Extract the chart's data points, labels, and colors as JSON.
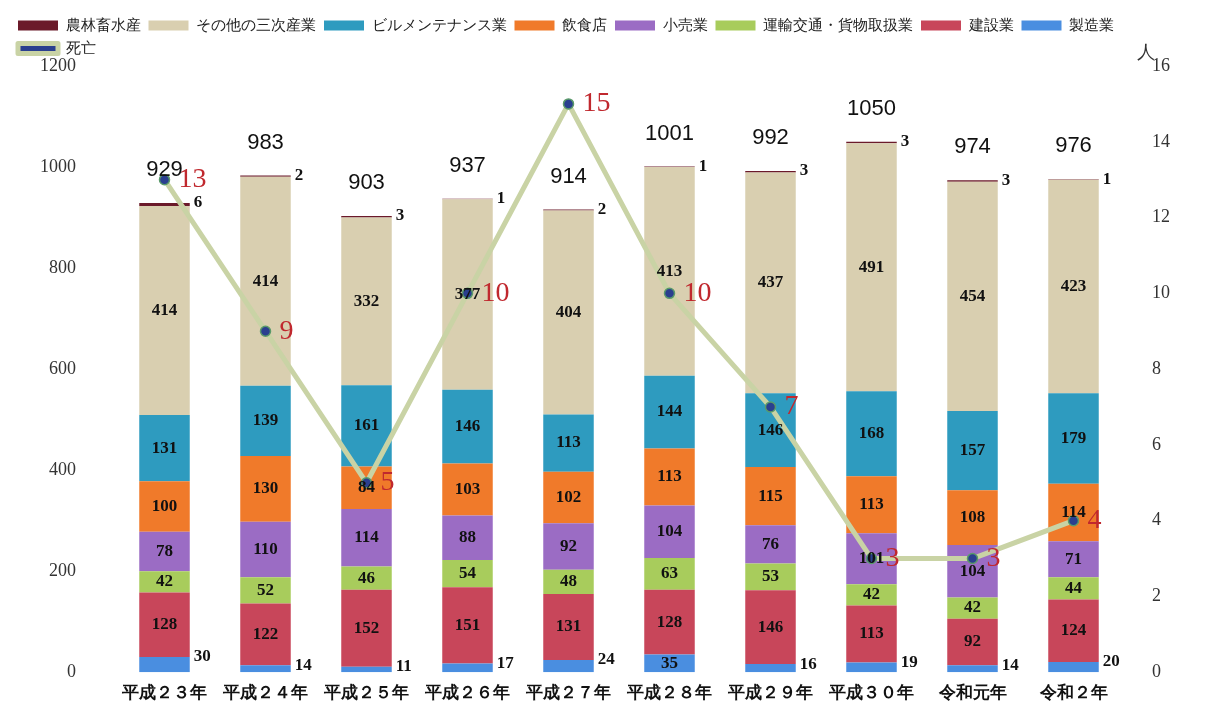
{
  "chart_data": {
    "type": "bar",
    "stacked": true,
    "categories": [
      "平成２３年",
      "平成２４年",
      "平成２５年",
      "平成２６年",
      "平成２７年",
      "平成２８年",
      "平成２９年",
      "平成３０年",
      "令和元年",
      "令和２年"
    ],
    "series": [
      {
        "name": "製造業",
        "color": "#4a8ee0",
        "values": [
          30,
          14,
          11,
          17,
          24,
          35,
          16,
          19,
          14,
          20
        ]
      },
      {
        "name": "建設業",
        "color": "#c8465a",
        "values": [
          128,
          122,
          152,
          151,
          131,
          128,
          146,
          113,
          92,
          124
        ]
      },
      {
        "name": "運輸交通・貨物取扱業",
        "color": "#a8cc5c",
        "values": [
          42,
          52,
          46,
          54,
          48,
          63,
          53,
          42,
          42,
          44
        ]
      },
      {
        "name": "小売業",
        "color": "#9b6cc4",
        "values": [
          78,
          110,
          114,
          88,
          92,
          104,
          76,
          101,
          104,
          71
        ]
      },
      {
        "name": "飲食店",
        "color": "#f07a2a",
        "values": [
          100,
          130,
          84,
          103,
          102,
          113,
          115,
          113,
          108,
          114
        ]
      },
      {
        "name": "ビルメンテナンス業",
        "color": "#2e9bbf",
        "values": [
          131,
          139,
          161,
          146,
          113,
          144,
          146,
          168,
          157,
          179
        ]
      },
      {
        "name": "その他の三次産業",
        "color": "#d9cfb0",
        "values": [
          414,
          414,
          332,
          377,
          404,
          413,
          437,
          491,
          454,
          423
        ]
      },
      {
        "name": "農林畜水産",
        "color": "#6b1a2a",
        "values": [
          6,
          2,
          3,
          1,
          2,
          1,
          3,
          3,
          3,
          1
        ]
      },
      {
        "name": "死亡",
        "type": "line",
        "axis": "y2",
        "color": "#c9d3a5",
        "values": [
          13,
          9,
          5,
          10,
          15,
          10,
          7,
          3,
          3,
          4
        ]
      }
    ],
    "totals": [
      "929",
      "983",
      "903",
      "937",
      "914",
      "1001",
      "992",
      "1050",
      "974",
      "976"
    ],
    "data_labels": true,
    "ylim": [
      0,
      1200
    ],
    "yticks": [
      0,
      200,
      400,
      600,
      800,
      1000,
      1200
    ],
    "y2lim": [
      0,
      16
    ],
    "y2ticks": [
      0,
      2,
      4,
      6,
      8,
      10,
      12,
      14,
      16
    ],
    "y2label": "人",
    "marker": "circle",
    "grid": false,
    "legend": "top left"
  }
}
